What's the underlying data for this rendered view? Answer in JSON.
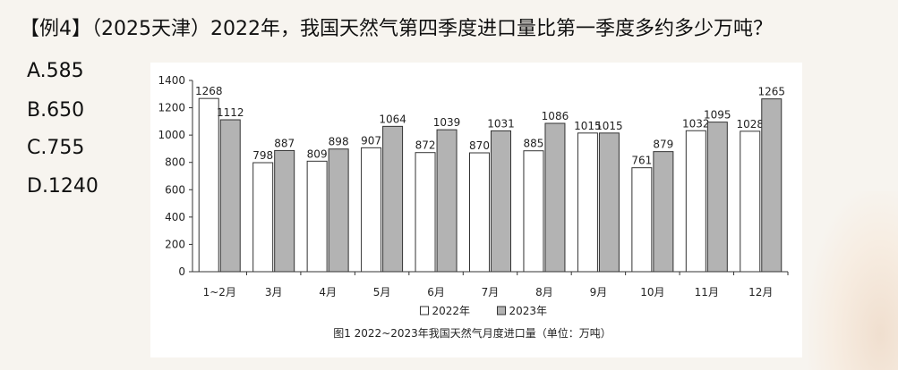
{
  "question": {
    "text": "【例4】（2025天津）2022年，我国天然气第四季度进口量比第一季度多约多少万吨？"
  },
  "options": [
    {
      "label": "A.585"
    },
    {
      "label": "B.650"
    },
    {
      "label": "C.755"
    },
    {
      "label": "D.1240"
    }
  ],
  "colors": {
    "bar_2022": "#ffffff",
    "bar_2023": "#b3b3b3",
    "bar_stroke": "#333333",
    "axis": "#333333",
    "text": "#222222"
  },
  "chart_data": {
    "type": "bar",
    "caption": "图1  2022~2023年我国天然气月度进口量（单位：万吨）",
    "categories": [
      "1~2月",
      "3月",
      "4月",
      "5月",
      "6月",
      "7月",
      "8月",
      "9月",
      "10月",
      "11月",
      "12月"
    ],
    "series": [
      {
        "name": "2022年",
        "values": [
          1268,
          798,
          809,
          907,
          872,
          870,
          885,
          1015,
          761,
          1032,
          1028
        ]
      },
      {
        "name": "2023年",
        "values": [
          1112,
          887,
          898,
          1064,
          1039,
          1031,
          1086,
          1015,
          879,
          1095,
          1265
        ]
      }
    ],
    "ylim": [
      0,
      1400
    ],
    "yticks": [
      0,
      200,
      400,
      600,
      800,
      1000,
      1200,
      1400
    ],
    "legend_position": "bottom",
    "grid": false
  }
}
